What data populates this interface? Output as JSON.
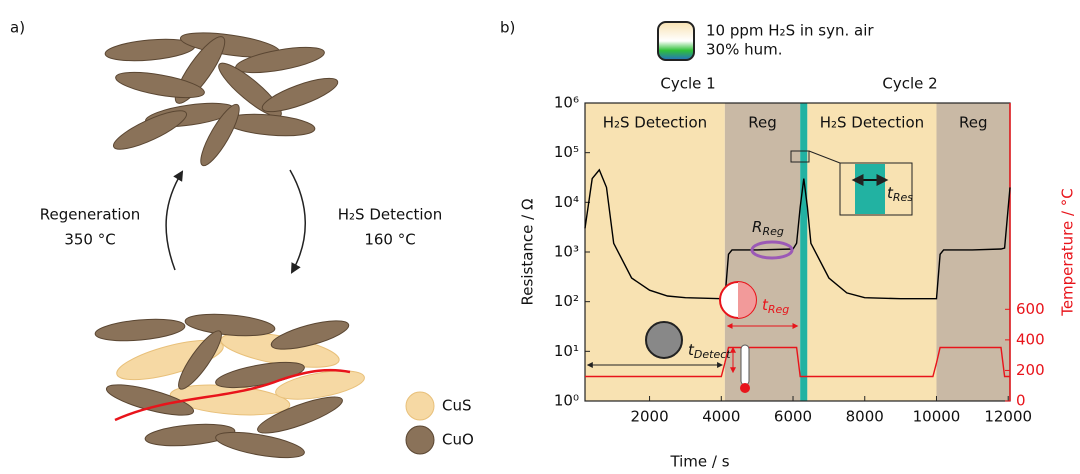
{
  "panel_a": {
    "label": "a)",
    "left_arrow": [
      "Regeneration",
      "350 °C"
    ],
    "right_arrow": [
      "H₂S Detection",
      "160 °C"
    ],
    "legend": [
      "CuS",
      "CuO"
    ]
  },
  "chart_data": {
    "type": "line",
    "panel_label": "b)",
    "legend_text": [
      "10 ppm H₂S in syn. air",
      "30% hum."
    ],
    "cycles": [
      "Cycle 1",
      "Cycle 2"
    ],
    "regions": [
      {
        "label": "H₂S Detection",
        "start": 200,
        "end": 4100,
        "color": "#f8e2b2"
      },
      {
        "label": "Reg",
        "start": 4100,
        "end": 6200,
        "color": "#c9b9a5"
      },
      {
        "start": 6200,
        "end": 6400,
        "color": "#22b2a2"
      },
      {
        "label": "H₂S Detection",
        "start": 6400,
        "end": 10000,
        "color": "#f8e2b2"
      },
      {
        "label": "Reg",
        "start": 10000,
        "end": 12050,
        "color": "#c9b9a5"
      }
    ],
    "annotations": {
      "r_reg": [
        "R",
        "Reg"
      ],
      "t_detect": [
        "t",
        "Detect"
      ],
      "t_reg": [
        "t",
        "Reg"
      ],
      "t_res": [
        "t",
        "Res"
      ]
    },
    "x_label": "Time / s",
    "y_label": "Resistance / Ω",
    "y2_label": "Temperature / °C",
    "x": [
      200,
      400,
      600,
      800,
      1000,
      1500,
      2000,
      2500,
      3000,
      4000,
      4100,
      4200,
      4300,
      5000,
      6000,
      6100,
      6200,
      6300,
      6400,
      6500,
      7000,
      7500,
      8000,
      9000,
      9900,
      10000,
      10100,
      10200,
      11000,
      11800,
      11900,
      12050
    ],
    "series": [
      {
        "name": "Resistance",
        "color": "#000000",
        "values": [
          3000,
          30000,
          45000,
          20000,
          1500,
          300,
          170,
          130,
          120,
          115,
          115,
          900,
          1100,
          1100,
          1150,
          1500,
          8000,
          30000,
          8000,
          1500,
          300,
          150,
          120,
          115,
          115,
          115,
          900,
          1100,
          1100,
          1150,
          1200,
          20000
        ]
      },
      {
        "name": "Temperature",
        "color": "#e8141b",
        "axis": "y2",
        "values": [
          160,
          160,
          160,
          160,
          160,
          160,
          160,
          160,
          160,
          160,
          250,
          350,
          350,
          350,
          350,
          350,
          160,
          160,
          160,
          160,
          160,
          160,
          160,
          160,
          160,
          250,
          350,
          350,
          350,
          350,
          160,
          160
        ]
      }
    ],
    "xlim": [
      200,
      12050
    ],
    "xticks": [
      2000,
      4000,
      6000,
      8000,
      10000,
      12000
    ],
    "ylim": [
      1,
      1000000
    ],
    "log_y": true,
    "yticks": [
      {
        "value": 1,
        "label": "10⁰"
      },
      {
        "value": 10,
        "label": "10¹"
      },
      {
        "value": 100,
        "label": "10²"
      },
      {
        "value": 1000,
        "label": "10³"
      },
      {
        "value": 10000,
        "label": "10⁴"
      },
      {
        "value": 100000,
        "label": "10⁵"
      },
      {
        "value": 1000000,
        "label": "10⁶"
      }
    ],
    "y2lim": [
      0,
      1950
    ],
    "y2ticks": [
      0,
      200,
      400,
      600
    ]
  }
}
